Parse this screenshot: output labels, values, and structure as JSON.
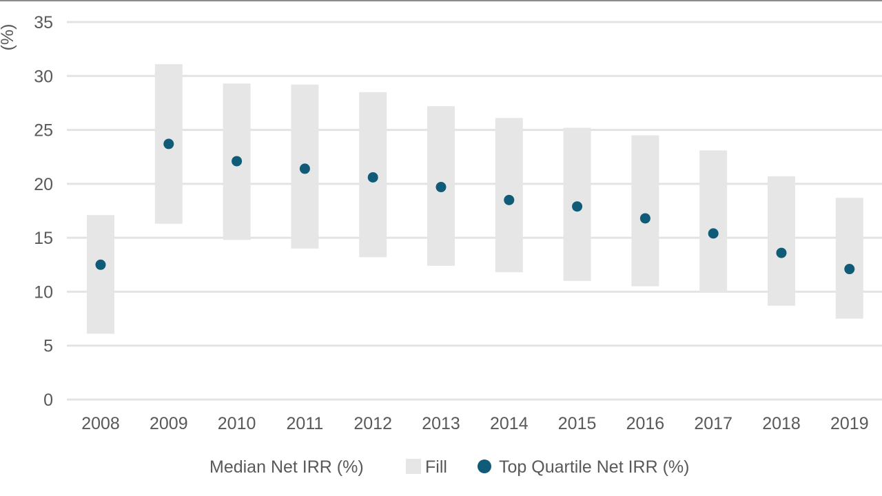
{
  "chart_data": {
    "type": "range-bar-scatter",
    "ylabel": "(%)",
    "ylim": [
      0,
      35
    ],
    "y_ticks": [
      0,
      5,
      10,
      15,
      20,
      25,
      30,
      35
    ],
    "grid": true,
    "legend_position": "bottom",
    "categories": [
      "2008",
      "2009",
      "2010",
      "2011",
      "2012",
      "2013",
      "2014",
      "2015",
      "2016",
      "2017",
      "2018",
      "2019"
    ],
    "series": [
      {
        "name": "Median Net IRR (%)",
        "role": "range-base",
        "values": [
          6.1,
          16.3,
          14.8,
          14.0,
          13.2,
          12.4,
          11.8,
          11.0,
          10.5,
          9.9,
          8.7,
          7.5
        ],
        "color": "#ffffff"
      },
      {
        "name": "Fill",
        "role": "range-fill",
        "values": [
          11.0,
          14.8,
          14.5,
          15.2,
          15.3,
          14.8,
          14.3,
          14.2,
          14.0,
          13.2,
          12.0,
          11.2
        ],
        "color": "#e6e6e6"
      },
      {
        "name": "Top Quartile Net IRR (%)",
        "role": "marker",
        "values": [
          12.5,
          23.7,
          22.1,
          21.4,
          20.6,
          19.7,
          18.5,
          17.9,
          16.8,
          15.4,
          13.6,
          12.1
        ],
        "color": "#0f5b78"
      }
    ],
    "legend": [
      "Median Net IRR (%)",
      "Fill",
      "Top Quartile Net IRR (%)"
    ]
  }
}
